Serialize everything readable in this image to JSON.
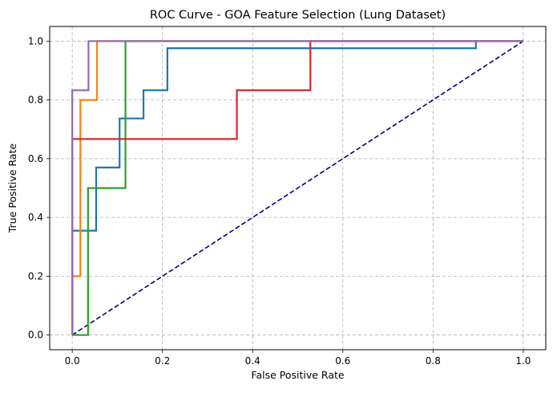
{
  "chart_data": {
    "type": "line",
    "title": "ROC Curve - GOA Feature Selection (Lung Dataset)",
    "xlabel": "False Positive Rate",
    "ylabel": "True Positive Rate",
    "xlim": [
      -0.05,
      1.05
    ],
    "ylim": [
      -0.05,
      1.05
    ],
    "xticks": [
      "0.0",
      "0.2",
      "0.4",
      "0.6",
      "0.8",
      "1.0"
    ],
    "yticks": [
      "0.0",
      "0.2",
      "0.4",
      "0.6",
      "0.8",
      "1.0"
    ],
    "grid": true,
    "series": [
      {
        "color": "#1f77b4",
        "points": [
          [
            0,
            0
          ],
          [
            0,
            0.355
          ],
          [
            0.053,
            0.355
          ],
          [
            0.053,
            0.57
          ],
          [
            0.105,
            0.57
          ],
          [
            0.105,
            0.737
          ],
          [
            0.158,
            0.737
          ],
          [
            0.158,
            0.833
          ],
          [
            0.211,
            0.833
          ],
          [
            0.211,
            0.976
          ],
          [
            0.895,
            0.976
          ],
          [
            0.895,
            1.0
          ],
          [
            1.0,
            1.0
          ]
        ]
      },
      {
        "color": "#ff7f0e",
        "points": [
          [
            0,
            0
          ],
          [
            0,
            0.2
          ],
          [
            0.018,
            0.2
          ],
          [
            0.018,
            0.8
          ],
          [
            0.055,
            0.8
          ],
          [
            0.055,
            1.0
          ],
          [
            1.0,
            1.0
          ]
        ]
      },
      {
        "color": "#2ca02c",
        "points": [
          [
            0,
            0
          ],
          [
            0.035,
            0
          ],
          [
            0.035,
            0.5
          ],
          [
            0.118,
            0.5
          ],
          [
            0.118,
            1.0
          ],
          [
            1.0,
            1.0
          ]
        ]
      },
      {
        "color": "#d62728",
        "points": [
          [
            0,
            0
          ],
          [
            0,
            0.667
          ],
          [
            0.365,
            0.667
          ],
          [
            0.365,
            0.833
          ],
          [
            0.528,
            0.833
          ],
          [
            0.528,
            1.0
          ],
          [
            1.0,
            1.0
          ]
        ]
      },
      {
        "color": "#9467bd",
        "points": [
          [
            0,
            0
          ],
          [
            0,
            0.833
          ],
          [
            0.036,
            0.833
          ],
          [
            0.036,
            1.0
          ],
          [
            1.0,
            1.0
          ]
        ]
      }
    ],
    "reference_line": {
      "color": "#000080",
      "style": "dashed",
      "points": [
        [
          0,
          0
        ],
        [
          1,
          1
        ]
      ]
    }
  }
}
